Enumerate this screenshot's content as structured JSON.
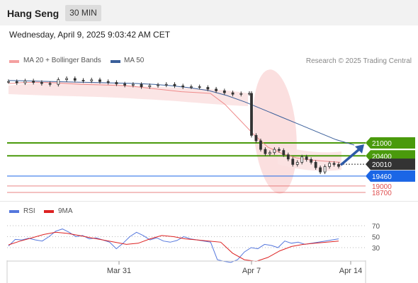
{
  "header": {
    "title": "Hang Seng",
    "timeframe": "30 MIN"
  },
  "date_line": "Wednesday, April 9, 2025 9:03:42 AM CET",
  "legend": {
    "ma20": "MA 20 + Bollinger Bands",
    "ma50": "MA 50",
    "credit": "Research © 2025 Trading Central",
    "rsi": "RSI",
    "ma9": "9MA"
  },
  "colors": {
    "resistance": "#4a9a0c",
    "pivot": "#333333",
    "support": "#1b66e6",
    "extra_support": "#e05050",
    "ma50": "#3a5f9a",
    "bollinger": "#f4a0a0",
    "rsi": "#5577dd",
    "rsi_ma": "#dd2222",
    "arrow": "#2e5aa8"
  },
  "chart_data": {
    "type": "candlestick",
    "x_ticks": [
      "Mar 31",
      "Apr 7",
      "Apr 14"
    ],
    "levels": [
      {
        "label": "21000",
        "value": 21000,
        "kind": "resistance"
      },
      {
        "label": "20400",
        "value": 20400,
        "kind": "resistance"
      },
      {
        "label": "20010",
        "value": 20010,
        "kind": "pivot"
      },
      {
        "label": "19460",
        "value": 19460,
        "kind": "support"
      },
      {
        "label": "19000",
        "value": 19000,
        "kind": "support-extra"
      },
      {
        "label": "18700",
        "value": 18700,
        "kind": "support-extra"
      }
    ],
    "price_series": {
      "name": "price",
      "values": [
        23850,
        23790,
        23880,
        23810,
        23760,
        23720,
        23940,
        23990,
        23910,
        23880,
        23930,
        23850,
        23810,
        23740,
        23680,
        23720,
        23610,
        23660,
        23690,
        23720,
        23650,
        23600,
        23610,
        23580,
        23500,
        23420,
        23330,
        23260,
        23290,
        23300,
        21350,
        21100,
        20700,
        20500,
        20550,
        20700,
        20650,
        20450,
        20250,
        20000,
        20100,
        20350,
        20230,
        20100,
        19850,
        19650,
        19900,
        20050,
        20000,
        19910
      ]
    },
    "ma50": {
      "name": "MA 50",
      "values": [
        23900,
        23880,
        23860,
        23840,
        23820,
        23800,
        23780,
        23760,
        23720,
        23650,
        23560,
        23430,
        23200,
        22900,
        22550,
        22200,
        21850,
        21500,
        21150,
        20900
      ]
    },
    "ma20": {
      "name": "MA 20",
      "values": [
        23760,
        23800,
        23820,
        23800,
        23760,
        23720,
        23700,
        23680,
        23660,
        23600,
        23520,
        23450,
        23380,
        23340,
        23300,
        22800,
        22100,
        21400,
        20800,
        20500,
        20300,
        20200,
        20150,
        20100
      ]
    },
    "forecast_arrow": {
      "from": 19910,
      "to": 21000
    },
    "rsi": {
      "name": "RSI",
      "ticks": [
        70,
        50,
        30
      ],
      "values": [
        33,
        45,
        44,
        47,
        44,
        42,
        50,
        60,
        64,
        58,
        50,
        52,
        46,
        48,
        44,
        40,
        28,
        38,
        50,
        58,
        52,
        44,
        48,
        42,
        40,
        43,
        50,
        46,
        44,
        42,
        40,
        8,
        5,
        3,
        8,
        22,
        30,
        28,
        36,
        34,
        30,
        42,
        38,
        40,
        36,
        38,
        40,
        42,
        44,
        46
      ]
    },
    "rsi_ma": {
      "name": "9MA",
      "values": [
        35,
        42,
        48,
        54,
        58,
        56,
        52,
        48,
        44,
        40,
        36,
        38,
        46,
        52,
        50,
        46,
        44,
        42,
        40,
        20,
        8,
        5,
        12,
        24,
        32,
        36,
        38,
        40,
        42
      ]
    }
  }
}
